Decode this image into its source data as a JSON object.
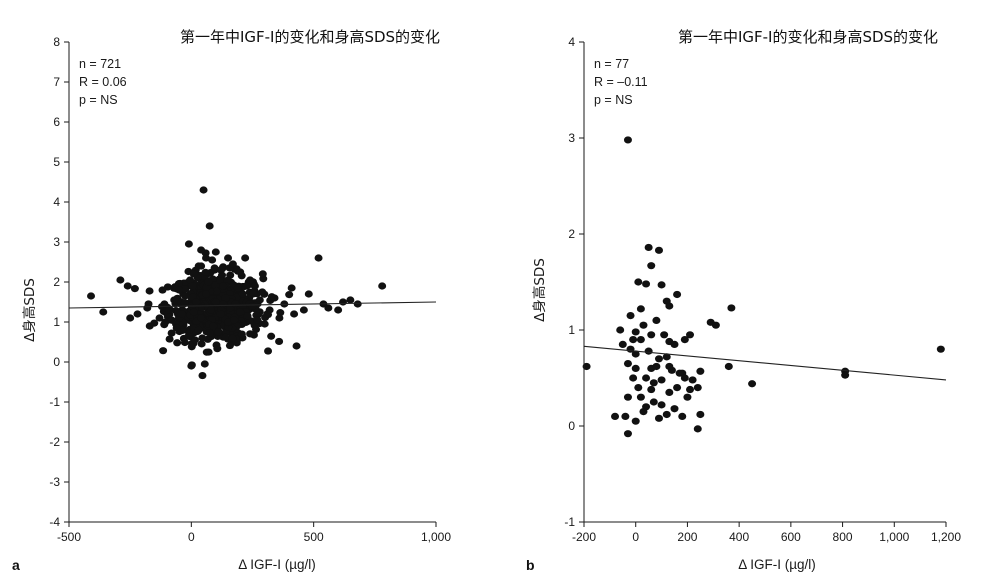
{
  "chart_data": [
    {
      "type": "scatter",
      "panel_label": "a",
      "title": "第一年中IGF-I的变化和身高SDS的变化",
      "xlabel": "Δ IGF-I (µg/l)",
      "ylabel": "Δ身高SDS",
      "xlim": [
        -500,
        1000
      ],
      "ylim": [
        -4,
        8
      ],
      "xticks": [
        -500,
        0,
        500,
        1000
      ],
      "xtick_labels": [
        "-500",
        "0",
        "500",
        "1,000"
      ],
      "yticks": [
        -4,
        -3,
        -2,
        -1,
        0,
        1,
        2,
        3,
        4,
        5,
        6,
        7,
        8
      ],
      "ytick_labels": [
        "-4",
        "-3",
        "-2",
        "-1",
        "0",
        "1",
        "2",
        "3",
        "4",
        "5",
        "6",
        "7",
        "8"
      ],
      "stats": [
        "n = 721",
        "R = 0.06",
        "p = NS"
      ],
      "regression": [
        [
          -500,
          1.35
        ],
        [
          1000,
          1.5
        ]
      ],
      "points": [
        [
          -410,
          1.65
        ],
        [
          -360,
          1.25
        ],
        [
          -290,
          2.05
        ],
        [
          -260,
          1.9
        ],
        [
          -250,
          1.1
        ],
        [
          -220,
          1.2
        ],
        [
          -180,
          1.35
        ],
        [
          -170,
          0.9
        ],
        [
          -130,
          1.1
        ],
        [
          -110,
          1.45
        ],
        [
          -90,
          1.3
        ],
        [
          -70,
          1.55
        ],
        [
          -60,
          0.85
        ],
        [
          -40,
          1.2
        ],
        [
          -25,
          1.65
        ],
        [
          -10,
          2.95
        ],
        [
          -5,
          2.05
        ],
        [
          0,
          -0.1
        ],
        [
          10,
          2.2
        ],
        [
          15,
          0.55
        ],
        [
          30,
          2.4
        ],
        [
          40,
          2.8
        ],
        [
          50,
          4.3
        ],
        [
          55,
          -0.05
        ],
        [
          60,
          2.6
        ],
        [
          75,
          3.4
        ],
        [
          85,
          2.55
        ],
        [
          95,
          2.35
        ],
        [
          100,
          2.75
        ],
        [
          120,
          2.3
        ],
        [
          150,
          2.6
        ],
        [
          170,
          2.45
        ],
        [
          200,
          2.25
        ],
        [
          220,
          2.6
        ],
        [
          240,
          2.05
        ],
        [
          260,
          1.9
        ],
        [
          290,
          1.75
        ],
        [
          310,
          1.2
        ],
        [
          340,
          1.6
        ],
        [
          380,
          1.45
        ],
        [
          410,
          1.85
        ],
        [
          420,
          1.2
        ],
        [
          430,
          0.4
        ],
        [
          460,
          1.3
        ],
        [
          480,
          1.7
        ],
        [
          520,
          2.6
        ],
        [
          540,
          1.45
        ],
        [
          560,
          1.35
        ],
        [
          600,
          1.3
        ],
        [
          620,
          1.5
        ],
        [
          650,
          1.55
        ],
        [
          680,
          1.45
        ],
        [
          780,
          1.9
        ],
        [
          20,
          1.5
        ],
        [
          40,
          1.1
        ],
        [
          60,
          1.7
        ],
        [
          80,
          1.3
        ],
        [
          100,
          1.5
        ],
        [
          120,
          1.2
        ],
        [
          140,
          1.6
        ],
        [
          160,
          1.35
        ],
        [
          180,
          1.45
        ],
        [
          200,
          1.25
        ],
        [
          30,
          0.8
        ],
        [
          90,
          0.9
        ],
        [
          150,
          1.0
        ],
        [
          210,
          1.7
        ],
        [
          250,
          1.4
        ],
        [
          280,
          1.55
        ],
        [
          320,
          1.3
        ],
        [
          360,
          1.1
        ],
        [
          5,
          1.9
        ],
        [
          70,
          2.0
        ],
        [
          130,
          1.9
        ],
        [
          190,
          1.85
        ],
        [
          45,
          0.6
        ],
        [
          110,
          0.75
        ],
        [
          230,
          1.15
        ],
        [
          270,
          1.05
        ],
        [
          300,
          0.95
        ],
        [
          10,
          1.25
        ],
        [
          130,
          1.45
        ],
        [
          175,
          1.05
        ]
      ],
      "cluster": {
        "center": [
          100,
          1.35
        ],
        "spread": [
          95,
          0.42
        ],
        "count": 640
      }
    },
    {
      "type": "scatter",
      "panel_label": "b",
      "title": "第一年中IGF-I的变化和身高SDS的变化",
      "xlabel": "Δ IGF-I (µg/l)",
      "ylabel": "Δ身高SDS",
      "xlim": [
        -200,
        1200
      ],
      "ylim": [
        -1,
        4
      ],
      "xticks": [
        -200,
        0,
        200,
        400,
        600,
        800,
        1000,
        1200
      ],
      "xtick_labels": [
        "-200",
        "0",
        "200",
        "400",
        "600",
        "800",
        "1,000",
        "1,200"
      ],
      "yticks": [
        -1,
        0,
        1,
        2,
        3,
        4
      ],
      "ytick_labels": [
        "-1",
        "0",
        "1",
        "2",
        "3",
        "4"
      ],
      "stats": [
        "n = 77",
        "R = –0.11",
        "p = NS"
      ],
      "regression": [
        [
          -200,
          0.83
        ],
        [
          1200,
          0.48
        ]
      ],
      "points": [
        [
          -190,
          0.62
        ],
        [
          -30,
          2.98
        ],
        [
          50,
          1.86
        ],
        [
          90,
          1.83
        ],
        [
          60,
          1.67
        ],
        [
          10,
          1.5
        ],
        [
          40,
          1.48
        ],
        [
          100,
          1.47
        ],
        [
          160,
          1.37
        ],
        [
          120,
          1.3
        ],
        [
          130,
          1.25
        ],
        [
          370,
          1.23
        ],
        [
          20,
          1.22
        ],
        [
          -20,
          1.15
        ],
        [
          -60,
          1.0
        ],
        [
          0,
          0.98
        ],
        [
          30,
          1.05
        ],
        [
          80,
          1.1
        ],
        [
          290,
          1.08
        ],
        [
          310,
          1.05
        ],
        [
          -10,
          0.9
        ],
        [
          20,
          0.9
        ],
        [
          60,
          0.95
        ],
        [
          110,
          0.95
        ],
        [
          130,
          0.88
        ],
        [
          150,
          0.85
        ],
        [
          190,
          0.9
        ],
        [
          210,
          0.95
        ],
        [
          -20,
          0.8
        ],
        [
          0,
          0.75
        ],
        [
          50,
          0.78
        ],
        [
          90,
          0.7
        ],
        [
          120,
          0.72
        ],
        [
          -30,
          0.65
        ],
        [
          0,
          0.6
        ],
        [
          60,
          0.6
        ],
        [
          80,
          0.62
        ],
        [
          140,
          0.58
        ],
        [
          180,
          0.55
        ],
        [
          250,
          0.57
        ],
        [
          -10,
          0.5
        ],
        [
          40,
          0.5
        ],
        [
          70,
          0.45
        ],
        [
          100,
          0.48
        ],
        [
          190,
          0.5
        ],
        [
          220,
          0.48
        ],
        [
          10,
          0.4
        ],
        [
          60,
          0.38
        ],
        [
          130,
          0.35
        ],
        [
          160,
          0.4
        ],
        [
          210,
          0.38
        ],
        [
          240,
          0.4
        ],
        [
          360,
          0.62
        ],
        [
          450,
          0.44
        ],
        [
          -30,
          0.3
        ],
        [
          20,
          0.3
        ],
        [
          70,
          0.25
        ],
        [
          100,
          0.22
        ],
        [
          200,
          0.3
        ],
        [
          40,
          0.2
        ],
        [
          150,
          0.18
        ],
        [
          -40,
          0.1
        ],
        [
          -80,
          0.1
        ],
        [
          0,
          0.05
        ],
        [
          90,
          0.08
        ],
        [
          120,
          0.12
        ],
        [
          180,
          0.1
        ],
        [
          250,
          0.12
        ],
        [
          240,
          -0.03
        ],
        [
          -30,
          -0.08
        ],
        [
          30,
          0.15
        ],
        [
          170,
          0.55
        ],
        [
          810,
          0.57
        ],
        [
          810,
          0.53
        ],
        [
          1180,
          0.8
        ],
        [
          130,
          0.62
        ],
        [
          -50,
          0.85
        ]
      ]
    }
  ]
}
